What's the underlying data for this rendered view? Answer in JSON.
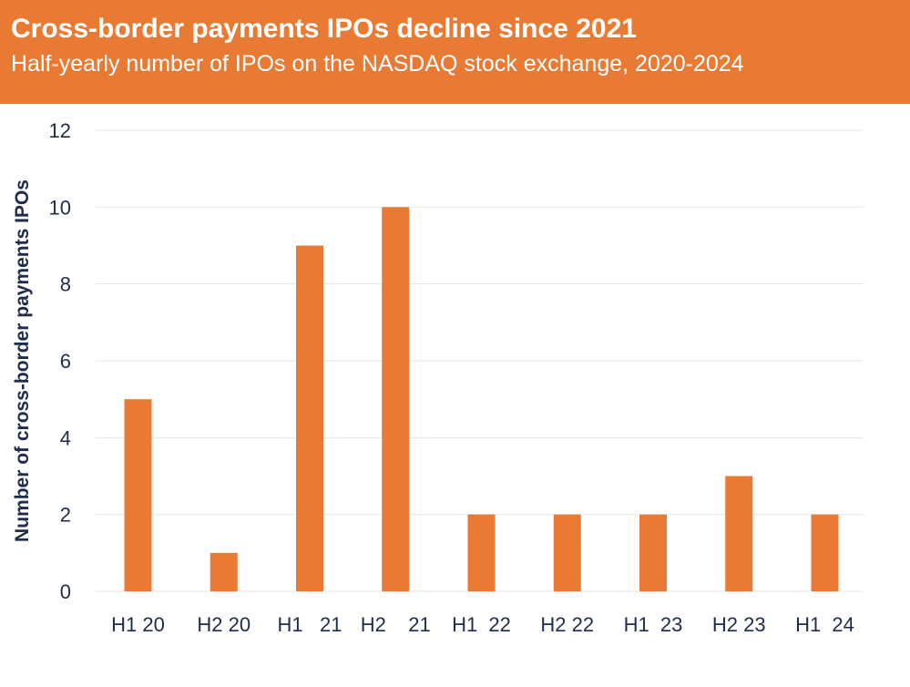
{
  "colors": {
    "accent": "#e87a33",
    "text": "#1f2d4a",
    "grid": "#e6e6e6"
  },
  "chart_data": {
    "type": "bar",
    "title": "Cross-border payments IPOs decline since 2021",
    "subtitle": "Half-yearly number of IPOs on the NASDAQ stock exchange, 2020-2024",
    "xlabel": "",
    "ylabel": "Number of cross-border payments IPOs",
    "categories": [
      "H1 20",
      "H2 20",
      "H1   21",
      "H2    21",
      "H1  22",
      "H2 22",
      "H1  23",
      "H2 23",
      "H1  24"
    ],
    "values": [
      5,
      1,
      9,
      10,
      2,
      2,
      2,
      3,
      2
    ],
    "ylim": [
      0,
      12
    ],
    "yticks": [
      0,
      2,
      4,
      6,
      8,
      10,
      12
    ],
    "grid": true,
    "legend": "none"
  }
}
